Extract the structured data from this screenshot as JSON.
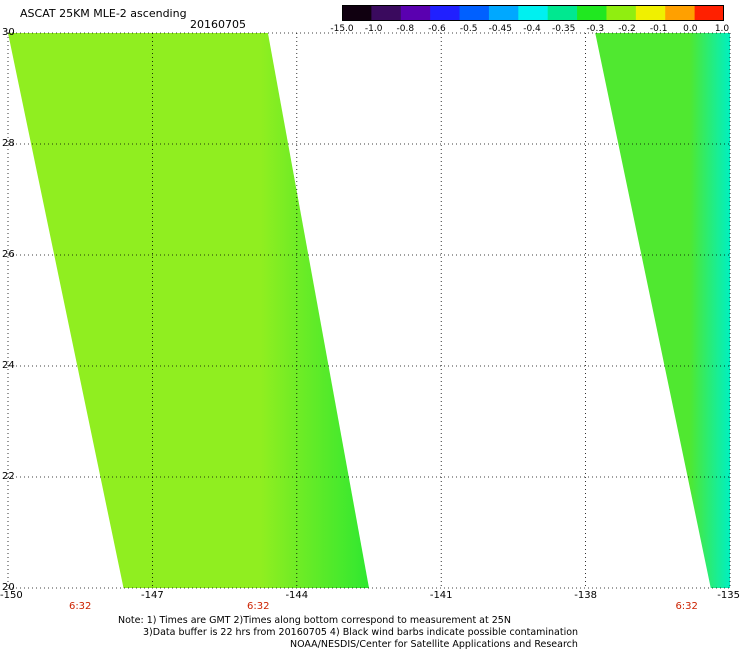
{
  "header": {
    "title": "ASCAT 25KM MLE-2 ascending",
    "date": "20160705"
  },
  "colorbar": {
    "labels": [
      "-15.0",
      "-1.0",
      "-0.8",
      "-0.6",
      "-0.5",
      "-0.45",
      "-0.4",
      "-0.35",
      "-0.3",
      "-0.2",
      "-0.1",
      "0.0",
      "1.0"
    ],
    "colors": [
      "#100010",
      "#3a0a5e",
      "#5a00b0",
      "#2020ff",
      "#0060ff",
      "#00a8ff",
      "#00f0f0",
      "#00e890",
      "#20e820",
      "#90ee10",
      "#f0f000",
      "#ffa000",
      "#ff2000"
    ]
  },
  "map": {
    "lon_ticks": [
      "-150",
      "-147",
      "-144",
      "-141",
      "-138",
      "-135"
    ],
    "lat_ticks": [
      "30",
      "28",
      "26",
      "24",
      "22",
      "20"
    ],
    "lon_range": [
      -150,
      -135
    ],
    "lat_range": [
      20,
      30
    ],
    "swaths": [
      {
        "name": "swath-west",
        "west_edge_top_lon": -150.0,
        "west_edge_bottom_lon": -147.6,
        "east_edge_top_lon": -144.6,
        "east_edge_bottom_lon": -142.5,
        "main_color": "#90ee20",
        "edge_color": "#30e830"
      },
      {
        "name": "swath-east",
        "west_edge_top_lon": -137.8,
        "west_edge_bottom_lon": -135.4,
        "east_edge_top_lon": -135.0,
        "east_edge_bottom_lon": -135.0,
        "main_color": "#50e830",
        "edge_color": "#00f0c0"
      }
    ],
    "time_labels": [
      {
        "lon": -148.5,
        "text": "6:32"
      },
      {
        "lon": -144.8,
        "text": "6:32"
      },
      {
        "lon": -135.9,
        "text": "6:32"
      }
    ]
  },
  "notes": {
    "line1": "Note: 1) Times are GMT 2)Times along bottom correspond to measurement at 25N",
    "line2": "3)Data buffer is 22 hrs from 20160705 4) Black wind barbs indicate possible contamination",
    "line3": "NOAA/NESDIS/Center for Satellite Applications and Research"
  }
}
